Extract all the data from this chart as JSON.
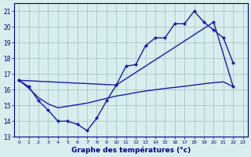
{
  "line1_x": [
    0,
    1,
    2,
    3,
    4,
    5,
    6,
    7,
    8,
    9,
    10,
    11,
    12,
    13,
    14,
    15,
    16,
    17,
    18,
    19,
    20,
    21,
    22
  ],
  "line1_y": [
    16.6,
    16.2,
    15.3,
    14.7,
    14.0,
    14.0,
    13.8,
    13.4,
    14.2,
    15.3,
    16.3,
    17.5,
    17.6,
    18.8,
    19.3,
    19.3,
    20.2,
    20.2,
    21.0,
    20.3,
    19.8,
    19.3,
    17.7
  ],
  "line2_x": [
    0,
    10,
    20,
    22
  ],
  "line2_y": [
    16.6,
    16.3,
    20.3,
    16.2
  ],
  "line3_x": [
    0,
    1,
    2,
    3,
    4,
    5,
    6,
    7,
    8,
    9,
    10,
    11,
    12,
    13,
    14,
    15,
    16,
    17,
    18,
    19,
    20,
    21,
    22
  ],
  "line3_y": [
    16.6,
    16.1,
    15.5,
    15.1,
    14.85,
    14.95,
    15.05,
    15.15,
    15.3,
    15.45,
    15.6,
    15.7,
    15.82,
    15.92,
    16.0,
    16.08,
    16.15,
    16.22,
    16.3,
    16.38,
    16.45,
    16.5,
    16.2
  ],
  "line_color": "#1a1aaa",
  "marker": "D",
  "markersize": 2.5,
  "linewidth": 1.0,
  "xlim": [
    -0.5,
    23.5
  ],
  "ylim": [
    13,
    21.5
  ],
  "yticks": [
    13,
    14,
    15,
    16,
    17,
    18,
    19,
    20,
    21
  ],
  "xticks": [
    0,
    1,
    2,
    3,
    4,
    5,
    6,
    7,
    8,
    9,
    10,
    11,
    12,
    13,
    14,
    15,
    16,
    17,
    18,
    19,
    20,
    21,
    22,
    23
  ],
  "xlabel": "Graphe des températures (°c)",
  "bg_color": "#d8eded",
  "grid_color": "#a0c0c0",
  "axis_color": "#000088",
  "tick_color": "#000088",
  "label_color": "#000088"
}
